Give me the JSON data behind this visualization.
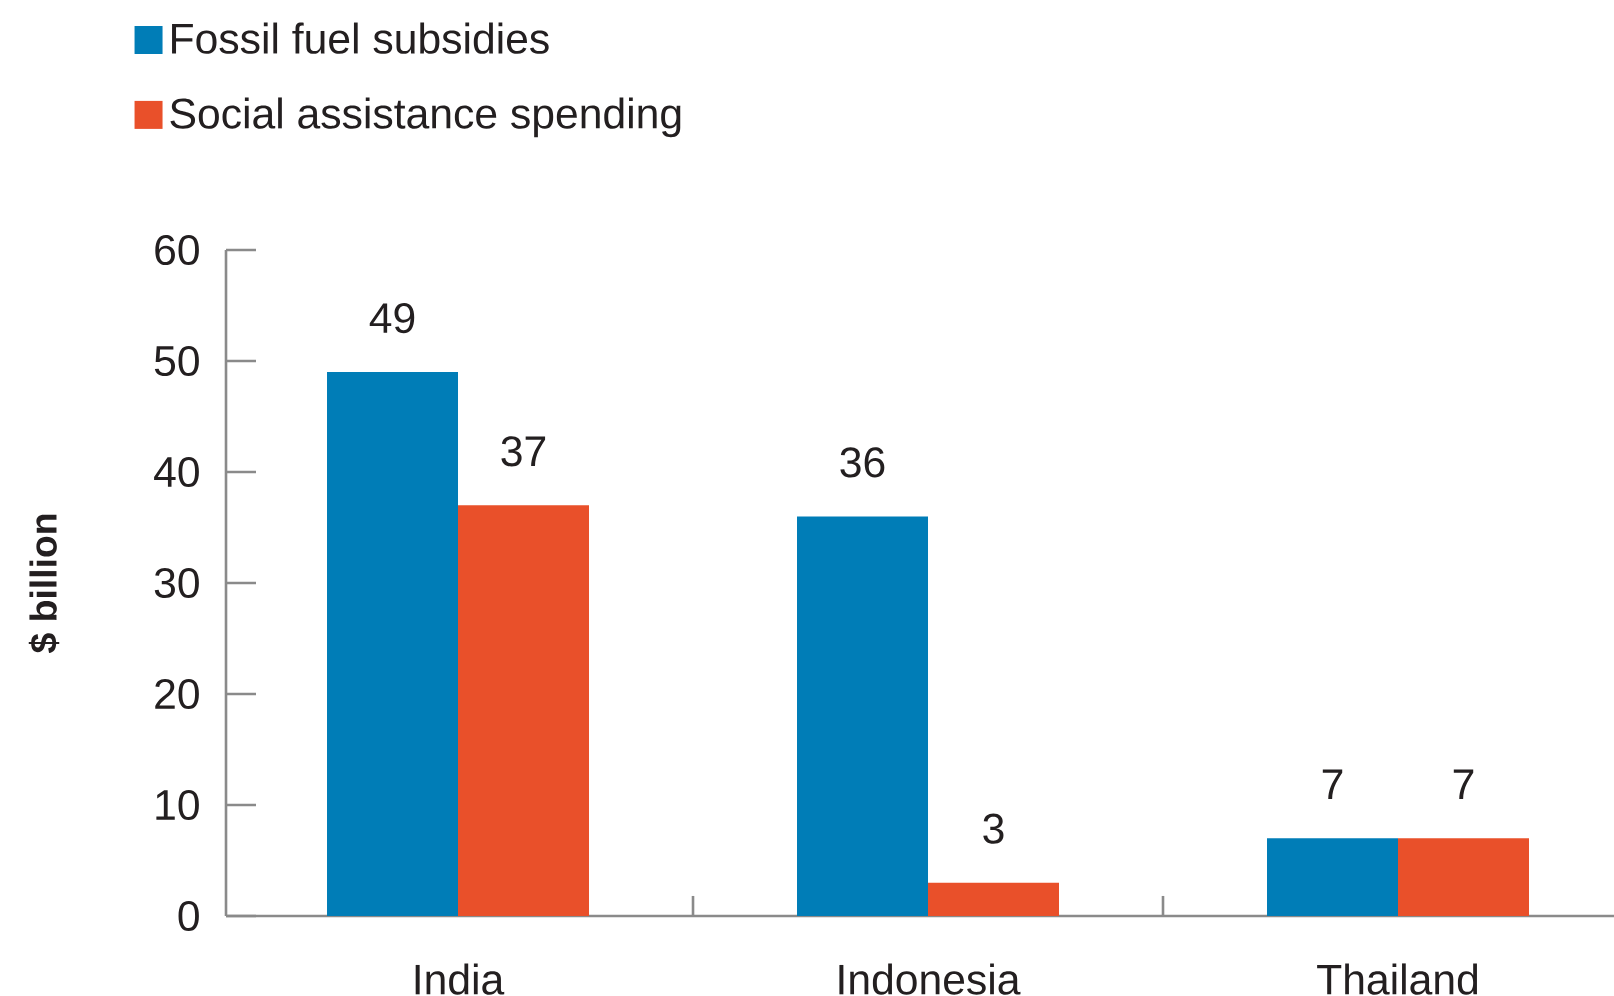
{
  "chart_data": {
    "type": "bar",
    "ylabel": "$ billion",
    "categories": [
      "India",
      "Indonesia",
      "Thailand"
    ],
    "series": [
      {
        "name": "Fossil fuel subsidies",
        "color": "#007db7",
        "values": [
          49,
          36,
          7
        ]
      },
      {
        "name": "Social assistance spending",
        "color": "#e9502a",
        "values": [
          37,
          3,
          7
        ]
      }
    ],
    "ylim": [
      0,
      60
    ],
    "yticks": [
      0,
      10,
      20,
      30,
      40,
      50,
      60
    ],
    "data_labels": true,
    "legend": "top left"
  }
}
